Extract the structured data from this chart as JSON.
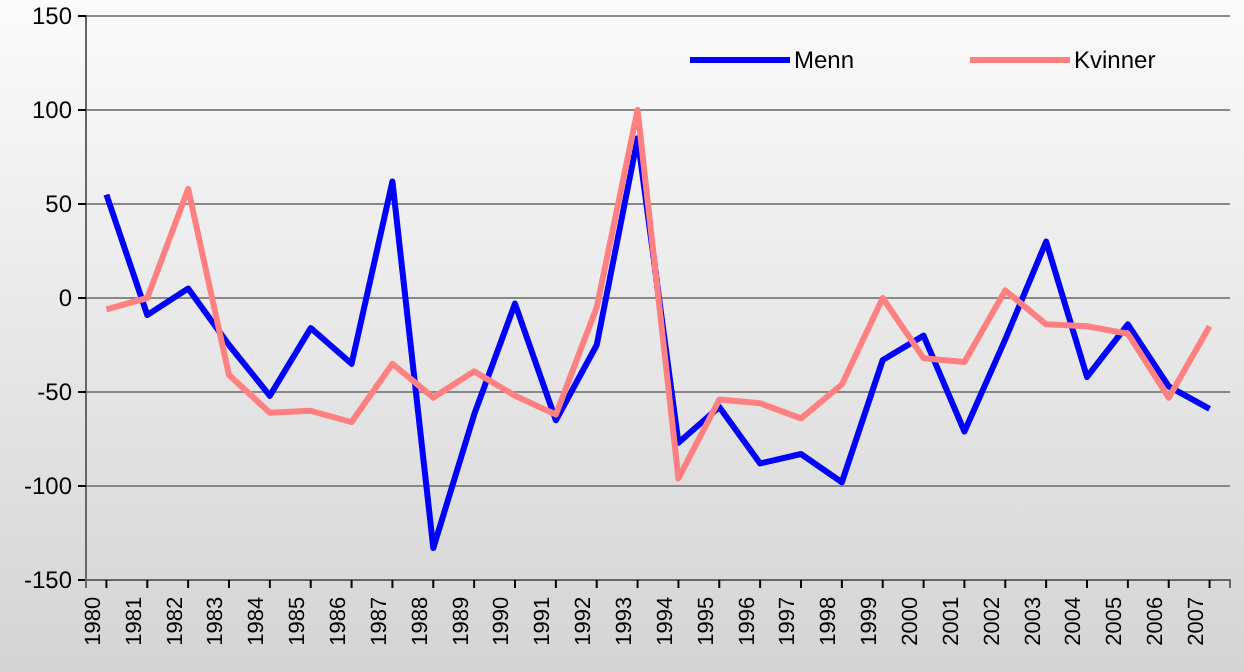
{
  "chart_data": {
    "type": "line",
    "categories": [
      "1980",
      "1981",
      "1982",
      "1983",
      "1984",
      "1985",
      "1986",
      "1987",
      "1988",
      "1989",
      "1990",
      "1991",
      "1992",
      "1993",
      "1994",
      "1995",
      "1996",
      "1997",
      "1998",
      "1999",
      "2000",
      "2001",
      "2002",
      "2003",
      "2004",
      "2005",
      "2006",
      "2007"
    ],
    "series": [
      {
        "name": "Menn",
        "color": "#0000ff",
        "values": [
          55,
          -9,
          5,
          -25,
          -52,
          -16,
          -35,
          62,
          -133,
          -62,
          -3,
          -65,
          -25,
          85,
          -77,
          -58,
          -88,
          -83,
          -98,
          -33,
          -20,
          -71,
          -22,
          30,
          -42,
          -14,
          -47,
          -59
        ]
      },
      {
        "name": "Kvinner",
        "color": "#ff8080",
        "values": [
          -6,
          0,
          58,
          -41,
          -61,
          -60,
          -66,
          -35,
          -53,
          -39,
          -52,
          -62,
          -5,
          100,
          -96,
          -54,
          -56,
          -64,
          -46,
          0,
          -32,
          -34,
          4,
          -14,
          -15,
          -19,
          -53,
          -15
        ]
      }
    ],
    "ylim": [
      -150,
      150
    ],
    "yticks": [
      -150,
      -100,
      -50,
      0,
      50,
      100,
      150
    ],
    "grid": "y",
    "legend": "top right",
    "line_style": "solid",
    "marker": "none"
  }
}
